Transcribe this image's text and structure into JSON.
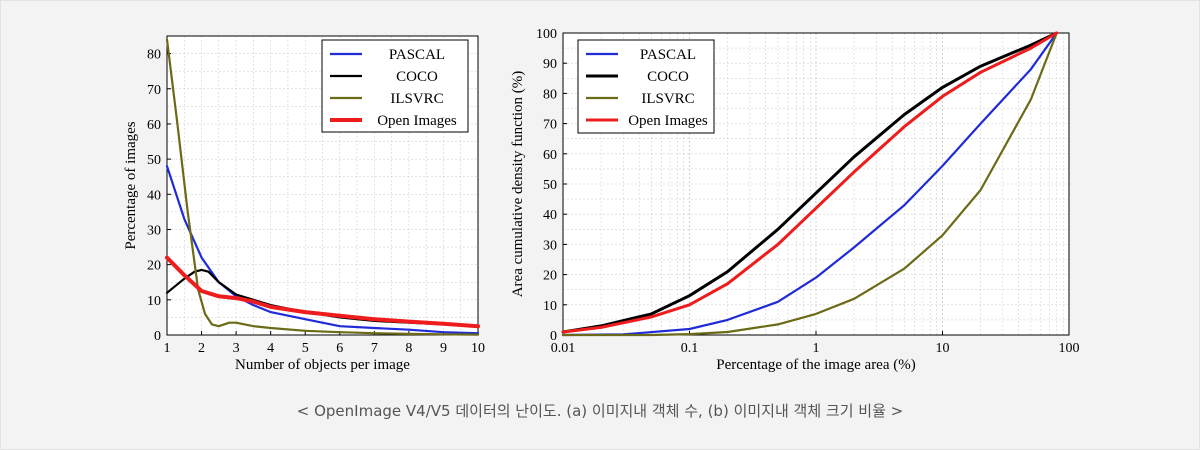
{
  "caption": "< OpenImage V4/V5 데이터의 난이도. (a) 이미지내 객체 수, (b) 이미지내 객체 크기 비율 >",
  "colors": {
    "PASCAL": "#1f2bd6",
    "COCO": "#000000",
    "ILSVRC": "#6b6a16",
    "Open Images": "#ee1c1c",
    "grid": "#c8c8c8",
    "plot_bg": "#ffffff"
  },
  "chart_data": [
    {
      "type": "line",
      "xlabel": "Number of objects per image",
      "ylabel": "Percentage of images",
      "xlim": [
        1,
        10
      ],
      "ylim": [
        0,
        85
      ],
      "xticks": [
        1,
        2,
        3,
        4,
        5,
        6,
        7,
        8,
        9,
        10
      ],
      "yticks": [
        0,
        10,
        20,
        30,
        40,
        50,
        60,
        70,
        80
      ],
      "grid": true,
      "legend_position": "top-right",
      "series": [
        {
          "name": "PASCAL",
          "x": [
            1,
            1.5,
            2,
            2.5,
            3,
            3.5,
            4,
            5,
            6,
            7,
            8,
            9,
            10
          ],
          "y": [
            48,
            33,
            22,
            15,
            11,
            8.5,
            6.5,
            4.5,
            2.5,
            2,
            1.5,
            0.8,
            0.5
          ]
        },
        {
          "name": "COCO",
          "x": [
            1,
            1.5,
            1.8,
            2,
            2.2,
            2.5,
            3,
            3.5,
            4,
            5,
            6,
            7,
            8,
            9,
            10
          ],
          "y": [
            12,
            16,
            18,
            18.5,
            18,
            15,
            11.5,
            10,
            8.5,
            6.5,
            5,
            4,
            3.5,
            3,
            2.5
          ]
        },
        {
          "name": "ILSVRC",
          "x": [
            1,
            1.3,
            1.6,
            1.9,
            2.1,
            2.3,
            2.5,
            2.8,
            3,
            3.5,
            4,
            5,
            6,
            7,
            8,
            9,
            10
          ],
          "y": [
            84,
            60,
            35,
            13,
            6,
            3,
            2.5,
            3.5,
            3.5,
            2.5,
            2,
            1.2,
            0.8,
            0.5,
            0.3,
            0.2,
            0.1
          ]
        },
        {
          "name": "Open Images",
          "x": [
            1,
            1.5,
            2,
            2.5,
            3,
            3.5,
            4,
            5,
            6,
            7,
            8,
            9,
            10
          ],
          "y": [
            22,
            17,
            12.5,
            11,
            10.5,
            9.5,
            8,
            6.5,
            5.5,
            4.5,
            3.8,
            3.2,
            2.5
          ]
        }
      ]
    },
    {
      "type": "line",
      "xscale": "log",
      "xlabel": "Percentage of the image area (%)",
      "ylabel": "Area cumulative density function (%)",
      "xlim": [
        0.01,
        100
      ],
      "ylim": [
        0,
        100
      ],
      "xticks": [
        0.01,
        0.1,
        1,
        10,
        100
      ],
      "xticklabels": [
        "0.01",
        "0.1",
        "1",
        "10",
        "100"
      ],
      "yticks": [
        0,
        10,
        20,
        30,
        40,
        50,
        60,
        70,
        80,
        90,
        100
      ],
      "grid": true,
      "legend_position": "top-left",
      "series": [
        {
          "name": "PASCAL",
          "x": [
            0.01,
            0.03,
            0.1,
            0.2,
            0.5,
            1,
            2,
            5,
            10,
            20,
            50,
            80
          ],
          "y": [
            0,
            0.2,
            2,
            5,
            11,
            19,
            29,
            43,
            56,
            70,
            88,
            100
          ]
        },
        {
          "name": "COCO",
          "x": [
            0.01,
            0.02,
            0.05,
            0.1,
            0.2,
            0.5,
            1,
            2,
            5,
            10,
            20,
            50,
            80
          ],
          "y": [
            1,
            3,
            7,
            13,
            21,
            35,
            47,
            59,
            73,
            82,
            89,
            96,
            100
          ]
        },
        {
          "name": "ILSVRC",
          "x": [
            0.01,
            0.05,
            0.1,
            0.2,
            0.5,
            1,
            2,
            5,
            10,
            20,
            50,
            80
          ],
          "y": [
            0,
            0,
            0.3,
            1,
            3.5,
            7,
            12,
            22,
            33,
            48,
            78,
            100
          ]
        },
        {
          "name": "Open Images",
          "x": [
            0.01,
            0.02,
            0.05,
            0.1,
            0.2,
            0.5,
            1,
            2,
            5,
            10,
            20,
            50,
            80
          ],
          "y": [
            1,
            2.5,
            6,
            10,
            17,
            30,
            42,
            54,
            69,
            79,
            87,
            95,
            100
          ]
        }
      ]
    }
  ]
}
